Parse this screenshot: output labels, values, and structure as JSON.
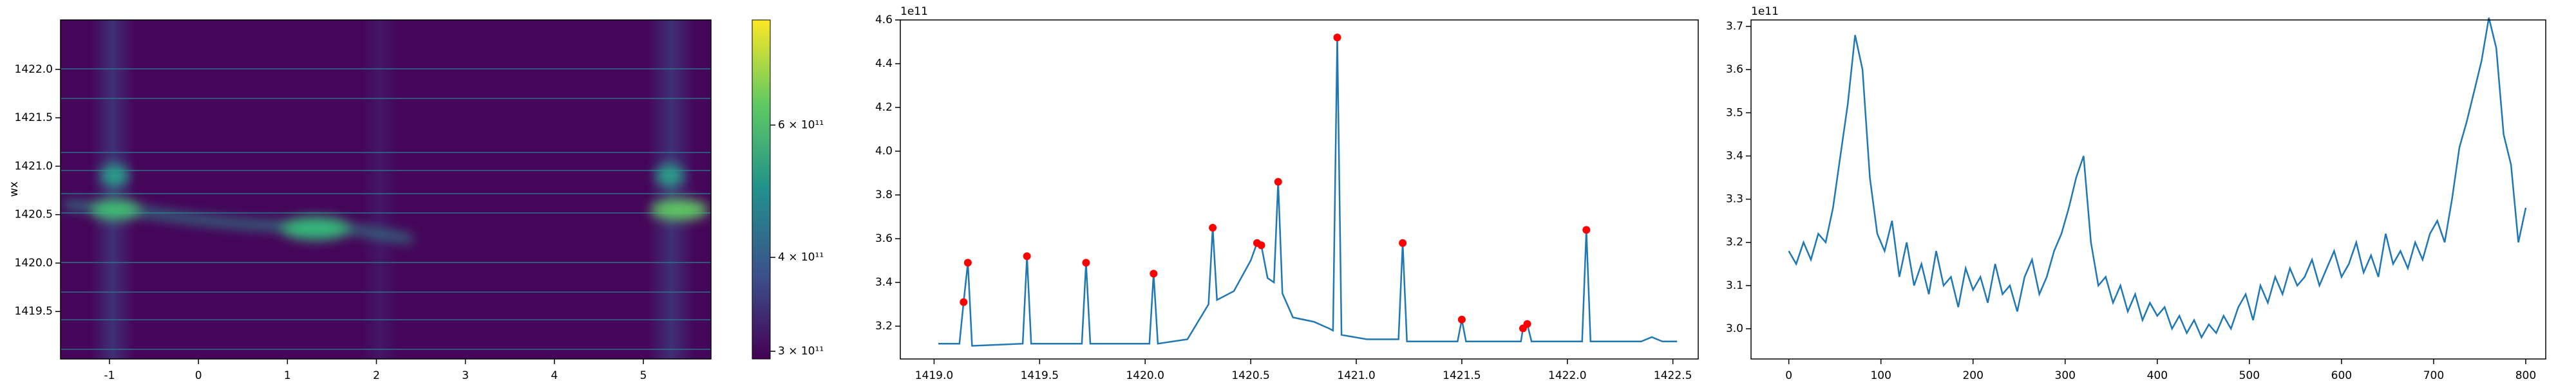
{
  "chart_data": [
    {
      "type": "heatmap",
      "ylabel": "wx",
      "xlim": [
        -1.55,
        5.76
      ],
      "xticks": [
        -1,
        0,
        1,
        2,
        3,
        4,
        5
      ],
      "ylim": [
        1419.01,
        1422.51
      ],
      "yticks": [
        1419.5,
        {
          "value": 1420.0,
          "label": "1420.0"
        },
        1420.5,
        {
          "value": 1421.0,
          "label": "1421.0"
        },
        1421.5,
        {
          "value": 1422.0,
          "label": "1422.0"
        }
      ],
      "colorbar": {
        "scale": "log",
        "colormap": "viridis",
        "lim": [
          293000000000,
          828000000000
        ],
        "ticks": [
          {
            "value": 300000000000,
            "label": "3 × 10¹¹"
          },
          {
            "value": 400000000000,
            "label": "4 × 10¹¹"
          },
          {
            "value": 600000000000,
            "label": "6 × 10¹¹"
          }
        ]
      }
    },
    {
      "type": "line",
      "color": "#1f77b4",
      "y_offset_label": "1e11",
      "xlim": [
        1418.84,
        1422.62
      ],
      "xticks": [
        {
          "value": 1419.0,
          "label": "1419.0"
        },
        1419.5,
        {
          "value": 1420.0,
          "label": "1420.0"
        },
        1420.5,
        {
          "value": 1421.0,
          "label": "1421.0"
        },
        1421.5,
        {
          "value": 1422.0,
          "label": "1422.0"
        },
        1422.5
      ],
      "ylim": [
        3.05,
        4.6
      ],
      "yticks": [
        3.2,
        3.4,
        3.6,
        3.8,
        {
          "value": 4.0,
          "label": "4.0"
        },
        4.2,
        4.4,
        4.6
      ],
      "x": [
        1419.02,
        1419.12,
        1419.14,
        1419.16,
        1419.18,
        1419.42,
        1419.44,
        1419.46,
        1419.7,
        1419.72,
        1419.74,
        1420.02,
        1420.04,
        1420.06,
        1420.2,
        1420.3,
        1420.32,
        1420.34,
        1420.42,
        1420.5,
        1420.53,
        1420.55,
        1420.58,
        1420.61,
        1420.63,
        1420.65,
        1420.7,
        1420.8,
        1420.87,
        1420.89,
        1420.91,
        1420.93,
        1421.05,
        1421.2,
        1421.22,
        1421.24,
        1421.48,
        1421.5,
        1421.52,
        1421.78,
        1421.79,
        1421.81,
        1421.83,
        1422.07,
        1422.09,
        1422.11,
        1422.35,
        1422.4,
        1422.45,
        1422.52
      ],
      "values": [
        3.12,
        3.12,
        3.31,
        3.49,
        3.11,
        3.12,
        3.52,
        3.12,
        3.12,
        3.49,
        3.12,
        3.12,
        3.44,
        3.12,
        3.14,
        3.3,
        3.65,
        3.32,
        3.36,
        3.5,
        3.58,
        3.57,
        3.42,
        3.4,
        3.86,
        3.35,
        3.24,
        3.22,
        3.19,
        3.18,
        4.52,
        3.16,
        3.14,
        3.14,
        3.58,
        3.13,
        3.13,
        3.23,
        3.13,
        3.13,
        3.19,
        3.21,
        3.13,
        3.13,
        3.64,
        3.13,
        3.13,
        3.15,
        3.13,
        3.13
      ],
      "peaks": {
        "color": "#ff0000",
        "x": [
          1419.14,
          1419.16,
          1419.44,
          1419.72,
          1420.04,
          1420.32,
          1420.53,
          1420.55,
          1420.63,
          1420.91,
          1421.22,
          1421.5,
          1421.79,
          1421.81,
          1422.09
        ],
        "values": [
          3.31,
          3.49,
          3.52,
          3.49,
          3.44,
          3.65,
          3.58,
          3.57,
          3.86,
          4.52,
          3.58,
          3.23,
          3.19,
          3.21,
          3.64
        ]
      }
    },
    {
      "type": "line",
      "color": "#1f77b4",
      "y_offset_label": "1e11",
      "xlim": [
        -41,
        821.7
      ],
      "xticks": [
        0,
        100,
        200,
        300,
        400,
        500,
        600,
        700,
        800
      ],
      "ylim": [
        2.93,
        3.715
      ],
      "yticks": [
        {
          "value": 3.0,
          "label": "3.0"
        },
        3.1,
        3.2,
        3.3,
        3.4,
        3.5,
        3.6,
        3.7
      ],
      "x": [
        0,
        8,
        16,
        24,
        32,
        40,
        48,
        56,
        64,
        72,
        80,
        88,
        96,
        104,
        112,
        120,
        128,
        136,
        144,
        152,
        160,
        168,
        176,
        184,
        192,
        200,
        208,
        216,
        224,
        232,
        240,
        248,
        256,
        264,
        272,
        280,
        288,
        296,
        304,
        312,
        320,
        328,
        336,
        344,
        352,
        360,
        368,
        376,
        384,
        392,
        400,
        408,
        416,
        424,
        432,
        440,
        448,
        456,
        464,
        472,
        480,
        488,
        496,
        504,
        512,
        520,
        528,
        536,
        544,
        552,
        560,
        568,
        576,
        584,
        592,
        600,
        608,
        616,
        624,
        632,
        640,
        648,
        656,
        664,
        672,
        680,
        688,
        696,
        704,
        712,
        720,
        728,
        736,
        744,
        752,
        760,
        768,
        776,
        784,
        792,
        800
      ],
      "values": [
        3.18,
        3.15,
        3.2,
        3.16,
        3.22,
        3.2,
        3.28,
        3.4,
        3.52,
        3.68,
        3.6,
        3.35,
        3.22,
        3.18,
        3.25,
        3.12,
        3.2,
        3.1,
        3.15,
        3.08,
        3.18,
        3.1,
        3.12,
        3.05,
        3.14,
        3.09,
        3.12,
        3.06,
        3.15,
        3.08,
        3.1,
        3.04,
        3.12,
        3.16,
        3.08,
        3.12,
        3.18,
        3.22,
        3.28,
        3.35,
        3.4,
        3.2,
        3.1,
        3.12,
        3.06,
        3.1,
        3.04,
        3.08,
        3.02,
        3.06,
        3.03,
        3.05,
        3.0,
        3.03,
        2.99,
        3.02,
        2.98,
        3.01,
        2.99,
        3.03,
        3.0,
        3.05,
        3.08,
        3.02,
        3.1,
        3.06,
        3.12,
        3.08,
        3.14,
        3.1,
        3.12,
        3.16,
        3.1,
        3.14,
        3.18,
        3.12,
        3.15,
        3.2,
        3.13,
        3.17,
        3.12,
        3.22,
        3.15,
        3.18,
        3.14,
        3.2,
        3.16,
        3.22,
        3.25,
        3.2,
        3.3,
        3.42,
        3.48,
        3.55,
        3.62,
        3.72,
        3.65,
        3.45,
        3.38,
        3.2,
        3.28
      ]
    }
  ]
}
